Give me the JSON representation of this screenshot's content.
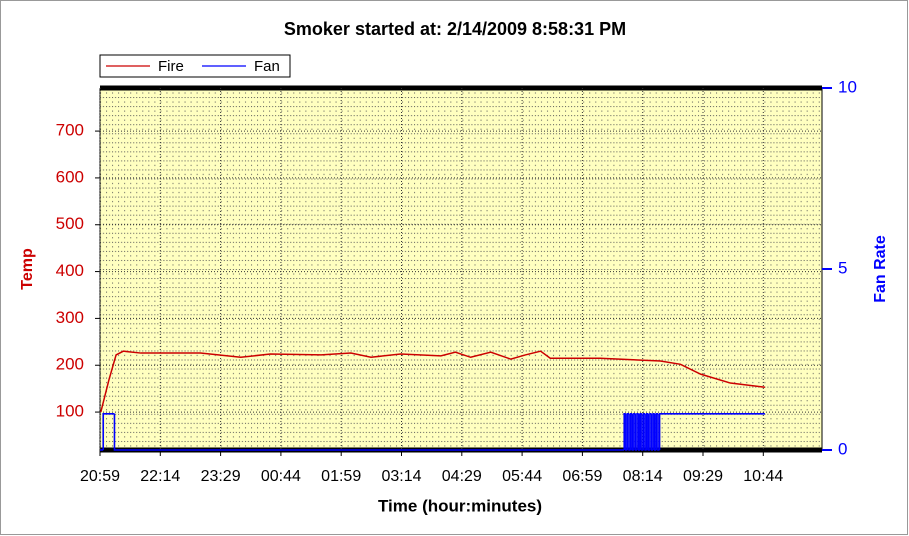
{
  "chart_data": {
    "type": "line",
    "title": "Smoker started at: 2/14/2009 8:58:31 PM",
    "x_label": "Time (hour:minutes)",
    "y_label": "Temp",
    "y2_label": "Fan Rate",
    "xlim": [
      "20:59",
      "11:57"
    ],
    "xticks": [
      "20:59",
      "22:14",
      "23:29",
      "00:44",
      "01:59",
      "03:14",
      "04:29",
      "05:44",
      "06:59",
      "08:14",
      "09:29",
      "10:44"
    ],
    "ylim": [
      19,
      792
    ],
    "yticks": [
      100,
      200,
      300,
      400,
      500,
      600,
      700
    ],
    "y2lim": [
      0,
      10
    ],
    "y2ticks": [
      0,
      5,
      10
    ],
    "grid": true,
    "legend": "top-left",
    "series": [
      {
        "name": "Fire",
        "color": "#cc0000",
        "x": [
          "21:00",
          "21:10",
          "21:19",
          "21:28",
          "21:50",
          "23:04",
          "23:54",
          "00:31",
          "01:34",
          "02:11",
          "02:36",
          "03:13",
          "04:03",
          "04:21",
          "04:40",
          "05:05",
          "05:30",
          "05:48",
          "06:07",
          "06:19",
          "07:21",
          "08:36",
          "09:01",
          "09:26",
          "10:03",
          "10:46"
        ],
        "values": [
          100,
          168,
          222,
          230,
          226,
          226,
          217,
          224,
          222,
          226,
          217,
          224,
          220,
          228,
          217,
          228,
          213,
          222,
          230,
          215,
          215,
          209,
          202,
          181,
          162,
          153
        ]
      },
      {
        "name": "Fan",
        "color": "#0000ff",
        "axis": "y2",
        "step": true,
        "x": [
          "20:59",
          "21:03",
          "21:17",
          "07:51",
          "07:53",
          "07:55",
          "07:57",
          "07:59",
          "08:01",
          "08:03",
          "08:05",
          "08:07",
          "08:09",
          "08:11",
          "08:13",
          "08:15",
          "08:17",
          "08:19",
          "08:21",
          "08:23",
          "08:25",
          "08:27",
          "08:29",
          "08:31",
          "08:33",
          "08:35",
          "10:46"
        ],
        "values": [
          0,
          1,
          0,
          1,
          0,
          1,
          0,
          1,
          0,
          1,
          0,
          1,
          0,
          1,
          0,
          1,
          0,
          1,
          0,
          1,
          0,
          1,
          0,
          1,
          0,
          1,
          1
        ]
      }
    ]
  }
}
